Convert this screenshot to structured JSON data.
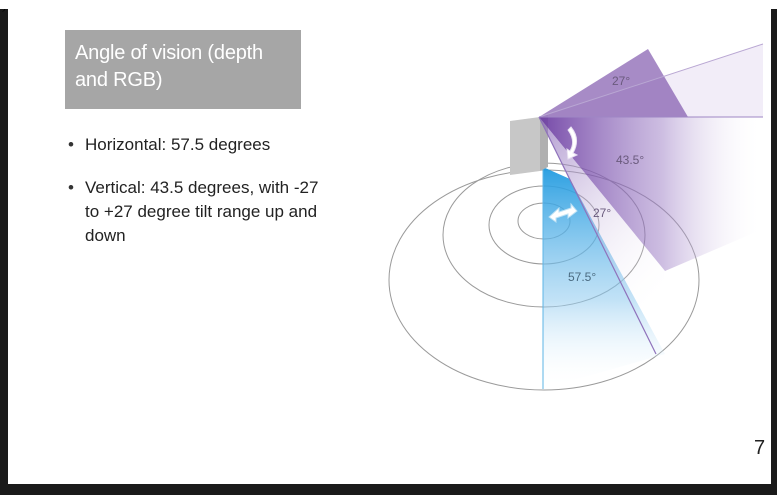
{
  "corner_mark": ")",
  "slide": {
    "title": "Angle of vision (depth and RGB)",
    "bullets": [
      "Horizontal: 57.5 degrees",
      "Vertical: 43.5 degrees, with -27 to +27 degree tilt range up and down"
    ],
    "page_number": "7"
  },
  "diagram": {
    "labels": {
      "tilt_up": "27°",
      "vertical_fov": "43.5°",
      "tilt_down": "27°",
      "horizontal_fov": "57.5°"
    },
    "colors": {
      "vertical_fov": "#7a4fa8",
      "horizontal_fov": "#4aa8e0",
      "sensor_body": "#c7c7c7",
      "rings": "#9a9a9a"
    }
  }
}
